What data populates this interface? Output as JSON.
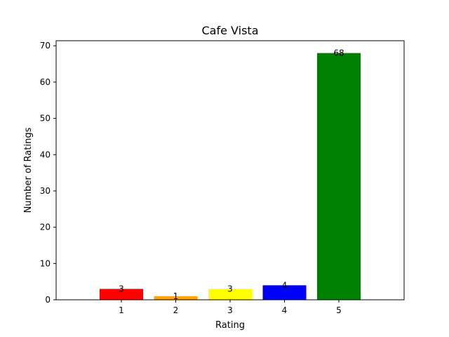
{
  "chart_data": {
    "type": "bar",
    "title": "Cafe Vista",
    "xlabel": "Rating",
    "ylabel": "Number of Ratings",
    "categories": [
      "1",
      "2",
      "3",
      "4",
      "5"
    ],
    "values": [
      3,
      1,
      3,
      4,
      68
    ],
    "data_labels": [
      "3",
      "1",
      "3",
      "4",
      "68"
    ],
    "colors": [
      "#ff0000",
      "#ffa500",
      "#ffff00",
      "#0000ff",
      "#008000"
    ],
    "ylim": [
      0,
      71.4
    ],
    "yticks": [
      0,
      10,
      20,
      30,
      40,
      50,
      60,
      70
    ],
    "ytick_labels": [
      "0",
      "10",
      "20",
      "30",
      "40",
      "50",
      "60",
      "70"
    ],
    "grid": false,
    "legend": "none"
  }
}
